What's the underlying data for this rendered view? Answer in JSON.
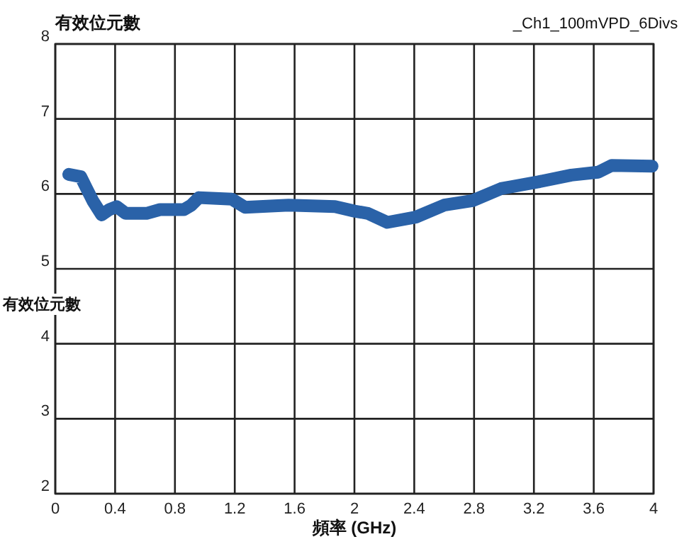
{
  "chart_data": {
    "type": "line",
    "title": "有效位元數",
    "subtitle": "_Ch1_100mVPD_6Divs",
    "xlabel": "頻率 (GHz)",
    "ylabel": "有效位元數",
    "xlim": [
      0,
      4
    ],
    "xticks": [
      0,
      0.4,
      0.8,
      1.2,
      1.6,
      2,
      2.4,
      2.8,
      3.2,
      3.6,
      4
    ],
    "ylim": [
      2,
      8
    ],
    "yticks": [
      2,
      3,
      4,
      5,
      6,
      7,
      8
    ],
    "grid": true,
    "line_style": "solid",
    "series": [
      {
        "color": "#2a62a8",
        "x": [
          0.09,
          0.17,
          0.21,
          0.25,
          0.31,
          0.36,
          0.41,
          0.47,
          0.61,
          0.7,
          0.86,
          0.91,
          0.96,
          1.18,
          1.27,
          1.56,
          1.87,
          2.0,
          2.09,
          2.22,
          2.41,
          2.6,
          2.79,
          2.98,
          3.23,
          3.45,
          3.63,
          3.72,
          3.99
        ],
        "values": [
          6.26,
          6.23,
          6.07,
          5.91,
          5.72,
          5.79,
          5.83,
          5.74,
          5.74,
          5.79,
          5.79,
          5.85,
          5.95,
          5.93,
          5.82,
          5.85,
          5.83,
          5.77,
          5.74,
          5.62,
          5.69,
          5.85,
          5.91,
          6.07,
          6.16,
          6.25,
          6.29,
          6.38,
          6.37
        ]
      }
    ]
  }
}
